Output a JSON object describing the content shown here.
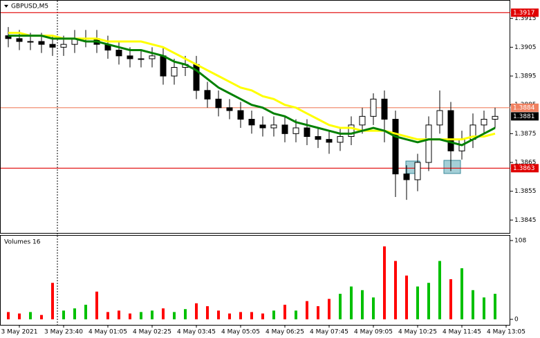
{
  "chart_data": {
    "type": "candlestick",
    "title": "GBPUSD,M5",
    "categories": [
      null,
      "3 May 2021",
      null,
      null,
      null,
      "3 May 23:40",
      null,
      null,
      null,
      "4 May 01:05",
      null,
      null,
      null,
      "4 May 02:25",
      null,
      null,
      null,
      "4 May 03:45",
      null,
      null,
      null,
      "4 May 05:05",
      null,
      null,
      null,
      "4 May 06:25",
      null,
      null,
      null,
      "4 May 07:45",
      null,
      null,
      null,
      "4 May 09:05",
      null,
      null,
      null,
      "4 May 10:25",
      null,
      null,
      null,
      "4 May 11:45",
      null,
      null,
      null,
      "4 May 13:05"
    ],
    "open": [
      1.3909,
      1.3908,
      1.3907,
      1.3907,
      1.3906,
      1.3905,
      1.3906,
      1.3908,
      1.3908,
      1.3906,
      1.3904,
      1.3902,
      1.3901,
      1.3901,
      1.3902,
      1.3895,
      1.3898,
      1.3899,
      1.389,
      1.3887,
      1.3884,
      1.3883,
      1.388,
      1.3878,
      1.3877,
      1.3878,
      1.3875,
      1.3877,
      1.3874,
      1.3873,
      1.3872,
      1.3874,
      1.3878,
      1.3881,
      1.3887,
      1.388,
      1.3861,
      1.3859,
      1.3865,
      1.3878,
      1.3883,
      1.3869,
      1.3873,
      1.3878,
      1.388,
      null
    ],
    "high": [
      1.3912,
      1.3911,
      1.391,
      1.391,
      1.3909,
      1.3909,
      1.3911,
      1.3911,
      1.3911,
      1.3909,
      1.3907,
      1.3905,
      1.3904,
      1.3905,
      1.3905,
      1.3901,
      1.3902,
      1.3902,
      1.3893,
      1.389,
      1.3887,
      1.3886,
      1.3883,
      1.3881,
      1.3881,
      1.3881,
      1.388,
      1.388,
      1.3877,
      1.3876,
      1.3877,
      1.3881,
      1.3884,
      1.3889,
      1.389,
      1.3883,
      1.3864,
      1.3868,
      1.3881,
      1.389,
      1.3886,
      1.3876,
      1.3882,
      1.3883,
      1.3884,
      null
    ],
    "low": [
      1.3905,
      1.3904,
      1.3904,
      1.3903,
      1.3902,
      1.3902,
      1.3903,
      1.3905,
      1.3903,
      1.3901,
      1.3899,
      1.3898,
      1.3898,
      1.3898,
      1.3892,
      1.3892,
      1.3895,
      1.3887,
      1.3884,
      1.3881,
      1.388,
      1.3877,
      1.3875,
      1.3874,
      1.3874,
      1.3872,
      1.3872,
      1.3871,
      1.387,
      1.3868,
      1.3869,
      1.3871,
      1.3875,
      1.3878,
      1.3872,
      1.3853,
      1.3852,
      1.3855,
      1.3862,
      1.3875,
      1.3862,
      1.3866,
      1.387,
      1.3875,
      1.3877,
      null
    ],
    "close": [
      1.3908,
      1.3907,
      1.3907,
      1.3906,
      1.3905,
      1.3906,
      1.3908,
      1.3908,
      1.3906,
      1.3904,
      1.3902,
      1.3901,
      1.3901,
      1.3902,
      1.3895,
      1.3898,
      1.3899,
      1.389,
      1.3887,
      1.3884,
      1.3883,
      1.388,
      1.3878,
      1.3877,
      1.3878,
      1.3875,
      1.3877,
      1.3874,
      1.3873,
      1.3872,
      1.3874,
      1.3878,
      1.3881,
      1.3887,
      1.388,
      1.3861,
      1.3859,
      1.3865,
      1.3878,
      1.3883,
      1.3869,
      1.3873,
      1.3878,
      1.388,
      1.3881,
      null
    ],
    "overlays": [
      {
        "color": "#ffff00",
        "values": [
          1.391,
          1.391,
          1.3909,
          1.3909,
          1.3909,
          1.3908,
          1.3908,
          1.3908,
          1.3908,
          1.3907,
          1.3907,
          1.3907,
          1.3907,
          1.3906,
          1.3905,
          1.3903,
          1.3901,
          1.3899,
          1.3897,
          1.3895,
          1.3893,
          1.3891,
          1.389,
          1.3888,
          1.3887,
          1.3885,
          1.3884,
          1.3882,
          1.388,
          1.3878,
          1.3877,
          1.3877,
          1.3876,
          1.3876,
          1.3876,
          1.3875,
          1.3874,
          1.3873,
          1.3873,
          1.3873,
          1.3873,
          1.3873,
          1.3874,
          1.3874,
          1.3875,
          null
        ]
      },
      {
        "color": "#008000",
        "values": [
          1.3909,
          1.3909,
          1.3909,
          1.3909,
          1.3908,
          1.3908,
          1.3908,
          1.3907,
          1.3907,
          1.3906,
          1.3905,
          1.3904,
          1.3904,
          1.3903,
          1.3902,
          1.39,
          1.3899,
          1.3897,
          1.3894,
          1.3891,
          1.3889,
          1.3887,
          1.3885,
          1.3884,
          1.3882,
          1.3881,
          1.3879,
          1.3878,
          1.3877,
          1.3876,
          1.3875,
          1.3875,
          1.3876,
          1.3877,
          1.3876,
          1.3874,
          1.3873,
          1.3872,
          1.3873,
          1.3873,
          1.3872,
          1.3871,
          1.3873,
          1.3875,
          1.3877,
          null
        ]
      }
    ],
    "ylim": [
      1.3841,
      1.3919
    ],
    "yticks": [
      1.3915,
      1.3905,
      1.3895,
      1.3885,
      1.3875,
      1.3865,
      1.3855,
      1.3845
    ],
    "levels": [
      {
        "value": 1.3917,
        "color": "#e00000"
      },
      {
        "value": 1.3884,
        "color": "#f08060"
      },
      {
        "value": 1.3881,
        "color": "#000000"
      },
      {
        "value": 1.3863,
        "color": "#e00000"
      }
    ],
    "volume": {
      "title": "Volumes 16",
      "values": [
        10,
        8,
        10,
        6,
        50,
        12,
        15,
        20,
        38,
        10,
        12,
        8,
        10,
        12,
        15,
        10,
        14,
        22,
        18,
        12,
        8,
        10,
        10,
        8,
        12,
        20,
        12,
        25,
        18,
        28,
        35,
        45,
        40,
        30,
        100,
        80,
        60,
        45,
        50,
        80,
        55,
        70,
        40,
        30,
        35,
        null
      ],
      "ylim": [
        0,
        108
      ],
      "yticks": [
        0,
        108
      ],
      "up_color": "#00c000",
      "down_color": "#ff0000"
    }
  }
}
